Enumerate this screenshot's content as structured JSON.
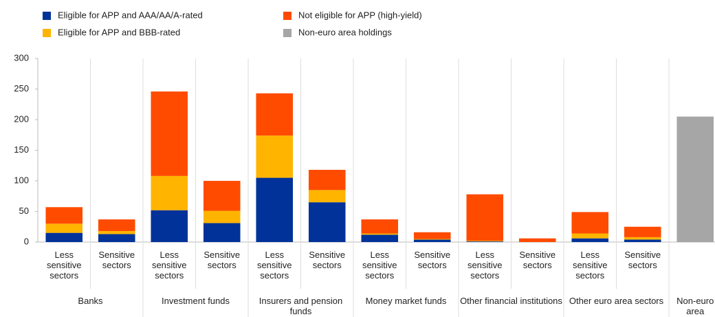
{
  "chart_data": {
    "type": "stacked_bar",
    "groups": [
      {
        "name": "Banks",
        "categories": [
          "Less sensitive sectors",
          "Sensitive sectors"
        ]
      },
      {
        "name": "Investment funds",
        "categories": [
          "Less sensitive sectors",
          "Sensitive sectors"
        ]
      },
      {
        "name": "Insurers and pension funds",
        "categories": [
          "Less sensitive sectors",
          "Sensitive sectors"
        ]
      },
      {
        "name": "Money market funds",
        "categories": [
          "Less sensitive sectors",
          "Sensitive sectors"
        ]
      },
      {
        "name": "Other financial institutions",
        "categories": [
          "Less sensitive sectors",
          "Sensitive sectors"
        ]
      },
      {
        "name": "Other euro area sectors",
        "categories": [
          "Less sensitive sectors",
          "Sensitive sectors"
        ]
      },
      {
        "name": "Non-euro area",
        "categories": [
          null
        ]
      }
    ],
    "series": [
      {
        "name": "Eligible for APP and AAA/AA/A-rated",
        "color": "#003299",
        "values": [
          15,
          13,
          52,
          31,
          105,
          65,
          12,
          4,
          1,
          0,
          6,
          4,
          null
        ]
      },
      {
        "name": "Eligible for APP and BBB-rated",
        "color": "#ffb400",
        "values": [
          15,
          5,
          56,
          20,
          69,
          20,
          2,
          1,
          1,
          0,
          8,
          4,
          null
        ]
      },
      {
        "name": "Not eligible for APP (high-yield)",
        "color": "#ff4b00",
        "values": [
          27,
          19,
          138,
          49,
          69,
          33,
          23,
          11,
          76,
          6,
          35,
          17,
          null
        ]
      },
      {
        "name": "Non-euro area holdings",
        "color": "#a6a6a6",
        "values": [
          null,
          null,
          null,
          null,
          null,
          null,
          null,
          null,
          null,
          null,
          null,
          null,
          205
        ]
      }
    ],
    "ylim": [
      0,
      300
    ],
    "yticks": [
      0,
      50,
      100,
      150,
      200,
      250,
      300
    ],
    "grid": false
  }
}
